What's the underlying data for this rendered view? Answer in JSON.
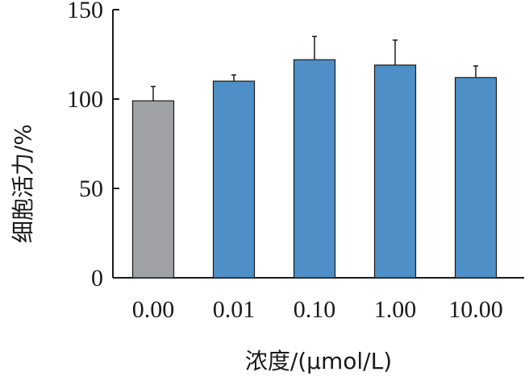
{
  "chart_data": {
    "type": "bar",
    "xlabel": "浓度/(μmol/L)",
    "ylabel": "细胞活力/%",
    "ylim": [
      0,
      150
    ],
    "yticks": [
      0,
      50,
      100,
      150
    ],
    "grid": false,
    "categories": [
      "0.00",
      "0.01",
      "0.10",
      "1.00",
      "10.00"
    ],
    "values": [
      99,
      110,
      122,
      119,
      112
    ],
    "errors": [
      8,
      3.5,
      13,
      14,
      6.5
    ],
    "colors": [
      "#a0a1a5",
      "#4e8fc8",
      "#4e8fc8",
      "#4e8fc8",
      "#4e8fc8"
    ]
  }
}
